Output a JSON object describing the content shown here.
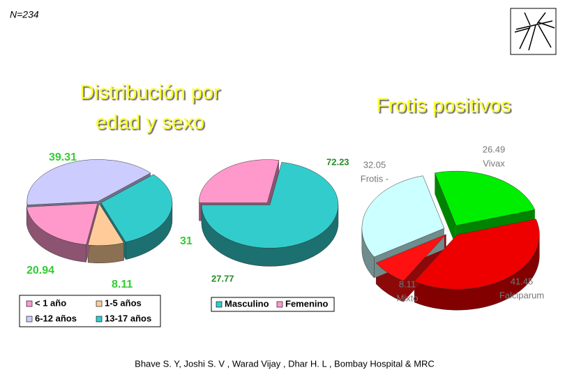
{
  "slide": {
    "sample": "N=234",
    "title_left": [
      "Distribución por",
      "edad y sexo"
    ],
    "credit": "Bhave S. Y, Joshi S. V ,  Warad Vijay ,  Dhar H. L , Bombay Hospital & MRC"
  },
  "chart_data": [
    {
      "type": "pie",
      "categories": [
        "< 1 año",
        "1-5 años",
        "6-12 años",
        "13-17 años"
      ],
      "values": [
        20.94,
        8.11,
        39.31,
        31
      ],
      "colors": [
        "#ff99cc",
        "#ffcc99",
        "#ccccff",
        "#33cccc"
      ],
      "legend": true
    },
    {
      "type": "pie",
      "categories": [
        "Masculino",
        "Femenino"
      ],
      "values": [
        72.23,
        27.77
      ],
      "colors": [
        "#33cccc",
        "#ff99cc"
      ],
      "legend": true
    },
    {
      "type": "pie",
      "title": "Frotis positivos",
      "categories": [
        "Vivax",
        "Falciparum",
        "Mixto",
        "Frotis -"
      ],
      "values": [
        26.49,
        41.45,
        8.11,
        32.05
      ],
      "colors": [
        "#00ee00",
        "#ee0000",
        "#ff1111",
        "#ccffff"
      ],
      "legend": false
    }
  ]
}
